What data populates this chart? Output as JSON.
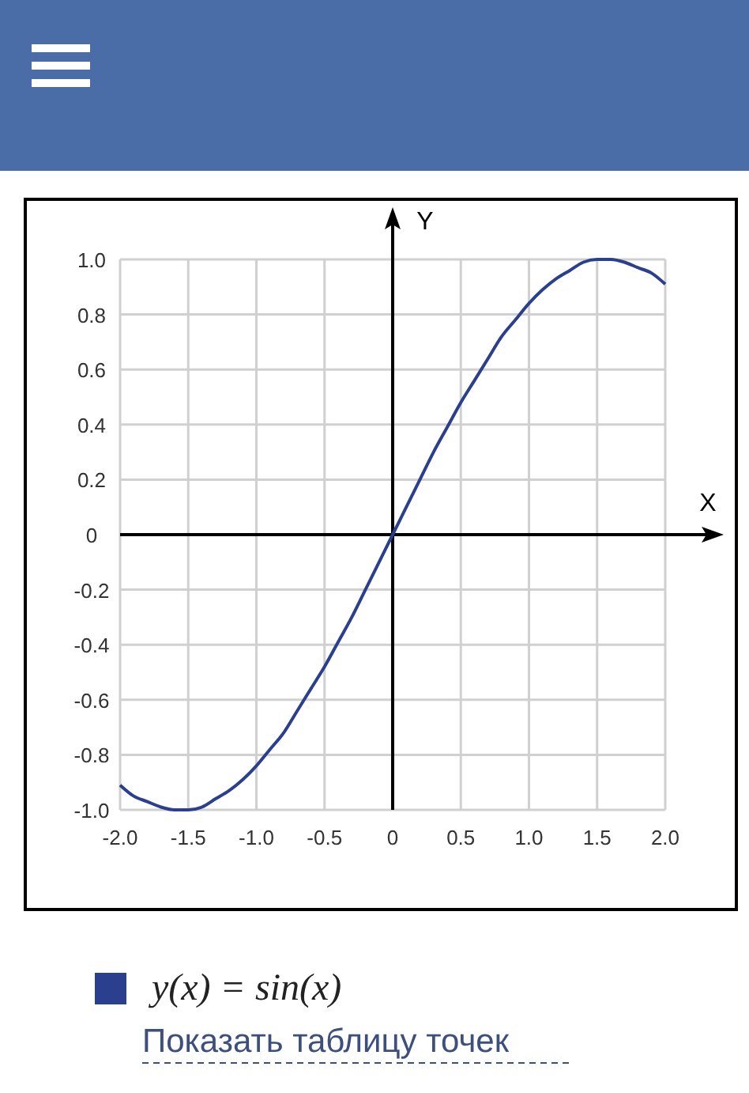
{
  "chart_data": {
    "type": "line",
    "xlabel": "X",
    "ylabel": "Y",
    "xlim": [
      -2,
      2
    ],
    "ylim": [
      -1,
      1
    ],
    "xticks": [
      {
        "value": -2,
        "label": "-2.0"
      },
      {
        "value": -1.5,
        "label": "-1.5"
      },
      {
        "value": -1,
        "label": "-1.0"
      },
      {
        "value": -0.5,
        "label": "-0.5"
      },
      0,
      0.5,
      {
        "value": 1,
        "label": "1.0"
      },
      1.5,
      {
        "value": 2,
        "label": "2.0"
      }
    ],
    "yticks": [
      {
        "value": -1,
        "label": "-1.0"
      },
      -0.8,
      -0.6,
      -0.4,
      -0.2,
      0,
      0.2,
      0.4,
      0.6,
      0.8,
      {
        "value": 1,
        "label": "1.0"
      }
    ],
    "grid": true,
    "legend": "bottom",
    "marker": "none",
    "line_style": "solid",
    "x": [
      -2,
      -1.9,
      -1.8,
      -1.7,
      -1.6,
      -1.5,
      -1.4,
      -1.3,
      -1.2,
      -1.1,
      -1,
      -0.9,
      -0.8,
      -0.7,
      -0.6,
      -0.5,
      -0.4,
      -0.3,
      -0.2,
      -0.1,
      0,
      0.1,
      0.2,
      0.3,
      0.4,
      0.5,
      0.6,
      0.7,
      0.8,
      0.9,
      1,
      1.1,
      1.2,
      1.3,
      1.4,
      1.5,
      1.6,
      1.7,
      1.8,
      1.9,
      2
    ],
    "series": [
      {
        "name": "y(x) = sin(x)",
        "color": "#2b3f8f",
        "values": [
          -0.91,
          -0.95,
          -0.97,
          -0.99,
          -1.0,
          -1.0,
          -0.99,
          -0.96,
          -0.93,
          -0.89,
          -0.84,
          -0.78,
          -0.72,
          -0.64,
          -0.56,
          -0.48,
          -0.39,
          -0.3,
          -0.2,
          -0.1,
          0,
          0.1,
          0.2,
          0.3,
          0.39,
          0.48,
          0.56,
          0.64,
          0.72,
          0.78,
          0.84,
          0.89,
          0.93,
          0.96,
          0.99,
          1.0,
          1.0,
          0.99,
          0.97,
          0.95,
          0.91
        ]
      }
    ],
    "annotations": [
      "Показать таблицу точек"
    ]
  }
}
